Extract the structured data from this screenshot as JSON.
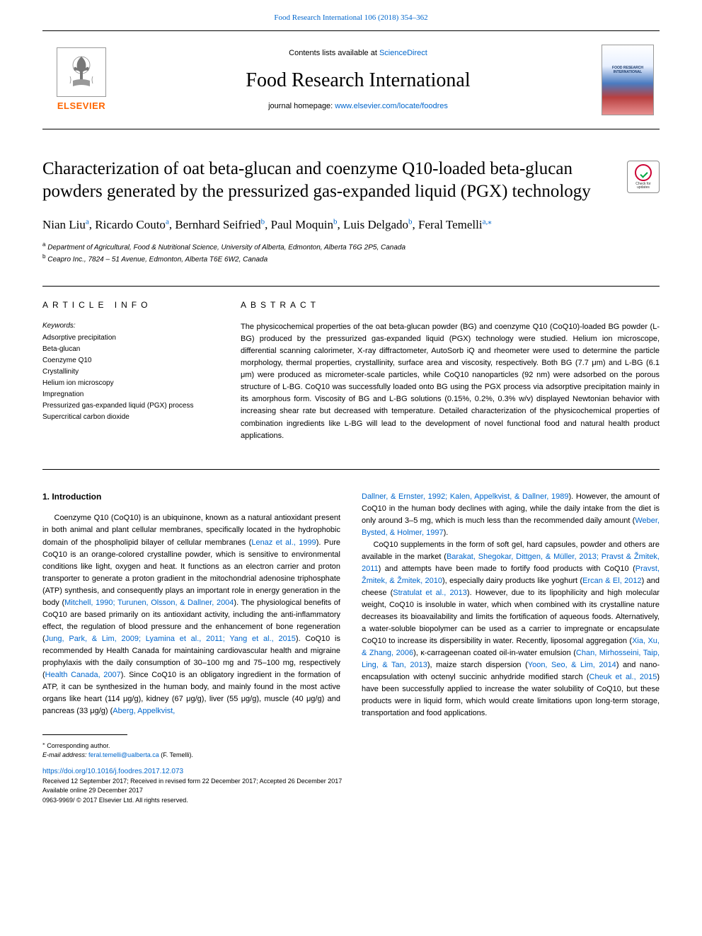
{
  "top": {
    "journal_ref": "Food Research International 106 (2018) 354–362"
  },
  "header": {
    "contents_prefix": "Contents lists available at ",
    "sciencedirect": "ScienceDirect",
    "journal_name": "Food Research International",
    "homepage_prefix": "journal homepage: ",
    "homepage_url": "www.elsevier.com/locate/foodres",
    "elsevier_word": "ELSEVIER",
    "cover_label": "FOOD RESEARCH INTERNATIONAL"
  },
  "crossmark": {
    "line1": "Check for",
    "line2": "updates"
  },
  "article": {
    "title": "Characterization of oat beta-glucan and coenzyme Q10-loaded beta-glucan powders generated by the pressurized gas-expanded liquid (PGX) technology",
    "authors_html": [
      {
        "name": "Nian Liu",
        "sup": "a"
      },
      {
        "name": "Ricardo Couto",
        "sup": "a"
      },
      {
        "name": "Bernhard Seifried",
        "sup": "b"
      },
      {
        "name": "Paul Moquin",
        "sup": "b"
      },
      {
        "name": "Luis Delgado",
        "sup": "b"
      },
      {
        "name": "Feral Temelli",
        "sup": "a,",
        "star": true
      }
    ],
    "affiliations": [
      {
        "sup": "a",
        "text": "Department of Agricultural, Food & Nutritional Science, University of Alberta, Edmonton, Alberta T6G 2P5, Canada"
      },
      {
        "sup": "b",
        "text": "Ceapro Inc., 7824 – 51 Avenue, Edmonton, Alberta T6E 6W2, Canada"
      }
    ]
  },
  "info": {
    "label": "ARTICLE INFO",
    "keywords_label": "Keywords:",
    "keywords": [
      "Adsorptive precipitation",
      "Beta-glucan",
      "Coenzyme Q10",
      "Crystallinity",
      "Helium ion microscopy",
      "Impregnation",
      "Pressurized gas-expanded liquid (PGX) process",
      "Supercritical carbon dioxide"
    ]
  },
  "abstract": {
    "label": "ABSTRACT",
    "text": "The physicochemical properties of the oat beta-glucan powder (BG) and coenzyme Q10 (CoQ10)-loaded BG powder (L-BG) produced by the pressurized gas-expanded liquid (PGX) technology were studied. Helium ion microscope, differential scanning calorimeter, X-ray diffractometer, AutoSorb iQ and rheometer were used to determine the particle morphology, thermal properties, crystallinity, surface area and viscosity, respectively. Both BG (7.7 μm) and L-BG (6.1 μm) were produced as micrometer-scale particles, while CoQ10 nanoparticles (92 nm) were adsorbed on the porous structure of L-BG. CoQ10 was successfully loaded onto BG using the PGX process via adsorptive precipitation mainly in its amorphous form. Viscosity of BG and L-BG solutions (0.15%, 0.2%, 0.3% w/v) displayed Newtonian behavior with increasing shear rate but decreased with temperature. Detailed characterization of the physicochemical properties of combination ingredients like L-BG will lead to the development of novel functional food and natural health product applications."
  },
  "body": {
    "intro_heading": "1. Introduction",
    "col1_runs": [
      {
        "t": "Coenzyme Q10 (CoQ10) is an ubiquinone, known as a natural antioxidant present in both animal and plant cellular membranes, specifically located in the hydrophobic domain of the phospholipid bilayer of cellular membranes ("
      },
      {
        "t": "Lenaz et al., 1999",
        "c": true
      },
      {
        "t": "). Pure CoQ10 is an orange-colored crystalline powder, which is sensitive to environmental conditions like light, oxygen and heat. It functions as an electron carrier and proton transporter to generate a proton gradient in the mitochondrial adenosine triphosphate (ATP) synthesis, and consequently plays an important role in energy generation in the body ("
      },
      {
        "t": "Mitchell, 1990; Turunen, Olsson, & Dallner, 2004",
        "c": true
      },
      {
        "t": "). The physiological benefits of CoQ10 are based primarily on its antioxidant activity, including the anti-inflammatory effect, the regulation of blood pressure and the enhancement of bone regeneration ("
      },
      {
        "t": "Jung, Park, & Lim, 2009; Lyamina et al., 2011; Yang et al., 2015",
        "c": true
      },
      {
        "t": "). CoQ10 is recommended by Health Canada for maintaining cardiovascular health and migraine prophylaxis with the daily consumption of 30–100 mg and 75–100 mg, respectively ("
      },
      {
        "t": "Health Canada, 2007",
        "c": true
      },
      {
        "t": "). Since CoQ10 is an obligatory ingredient in the formation of ATP, it can be synthesized in the human body, and mainly found in the most active organs like heart (114 μg/g), kidney (67 μg/g), liver (55 μg/g), muscle (40 μg/g) and pancreas (33 μg/g) ("
      },
      {
        "t": "Aberg, Appelkvist,",
        "c": true
      }
    ],
    "col2_p1_runs": [
      {
        "t": "Dallner, & Ernster, 1992; Kalen, Appelkvist, & Dallner, 1989",
        "c": true
      },
      {
        "t": "). However, the amount of CoQ10 in the human body declines with aging, while the daily intake from the diet is only around 3–5 mg, which is much less than the recommended daily amount ("
      },
      {
        "t": "Weber, Bysted, & Holmer, 1997",
        "c": true
      },
      {
        "t": ")."
      }
    ],
    "col2_p2_runs": [
      {
        "t": "CoQ10 supplements in the form of soft gel, hard capsules, powder and others are available in the market ("
      },
      {
        "t": "Barakat, Shegokar, Dittgen, & Müller, 2013; Pravst & Žmitek, 2011",
        "c": true
      },
      {
        "t": ") and attempts have been made to fortify food products with CoQ10 ("
      },
      {
        "t": "Pravst, Žmitek, & Žmitek, 2010",
        "c": true
      },
      {
        "t": "), especially dairy products like yoghurt ("
      },
      {
        "t": "Ercan & El, 2012",
        "c": true
      },
      {
        "t": ") and cheese ("
      },
      {
        "t": "Stratulat et al., 2013",
        "c": true
      },
      {
        "t": "). However, due to its lipophilicity and high molecular weight, CoQ10 is insoluble in water, which when combined with its crystalline nature decreases its bioavailability and limits the fortification of aqueous foods. Alternatively, a water-soluble biopolymer can be used as a carrier to impregnate or encapsulate CoQ10 to increase its dispersibility in water. Recently, liposomal aggregation ("
      },
      {
        "t": "Xia, Xu, & Zhang, 2006",
        "c": true
      },
      {
        "t": "), κ-carrageenan coated oil-in-water emulsion ("
      },
      {
        "t": "Chan, Mirhosseini, Taip, Ling, & Tan, 2013",
        "c": true
      },
      {
        "t": "), maize starch dispersion ("
      },
      {
        "t": "Yoon, Seo, & Lim, 2014",
        "c": true
      },
      {
        "t": ") and nano-encapsulation with octenyl succinic anhydride modified starch ("
      },
      {
        "t": "Cheuk et al., 2015",
        "c": true
      },
      {
        "t": ") have been successfully applied to increase the water solubility of CoQ10, but these products were in liquid form, which would create limitations upon long-term storage, transportation and food applications."
      }
    ]
  },
  "footer": {
    "corr_marker": "⁎",
    "corr_text": "Corresponding author.",
    "email_label": "E-mail address: ",
    "email": "feral.temelli@ualberta.ca",
    "email_paren": " (F. Temelli).",
    "doi": "https://doi.org/10.1016/j.foodres.2017.12.073",
    "received": "Received 12 September 2017; Received in revised form 22 December 2017; Accepted 26 December 2017",
    "available": "Available online 29 December 2017",
    "issn": "0963-9969/ © 2017 Elsevier Ltd. All rights reserved."
  },
  "colors": {
    "link": "#0066cc",
    "elsevier_orange": "#ff6600",
    "text": "#000000"
  }
}
